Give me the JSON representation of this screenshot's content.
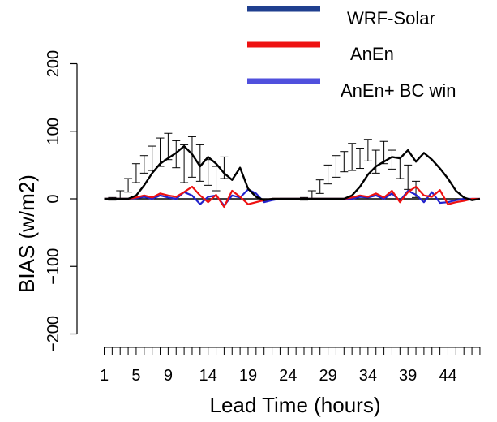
{
  "chart_data": {
    "type": "line",
    "title": "",
    "xlabel": "Lead Time (hours)",
    "ylabel": "BIAS (w/m2)",
    "xlim": [
      1,
      48
    ],
    "ylim": [
      -200,
      200
    ],
    "x_ticks": [
      1,
      5,
      9,
      14,
      19,
      24,
      29,
      34,
      39,
      44
    ],
    "x_tick_labels": [
      "1",
      "5",
      "9",
      "14",
      "19",
      "24",
      "29",
      "34",
      "39",
      "44"
    ],
    "y_ticks": [
      -200,
      -100,
      0,
      100,
      200
    ],
    "y_tick_labels": [
      "−200",
      "−100",
      "0",
      "100",
      "200"
    ],
    "grid": false,
    "legend_position": "top-right",
    "legend": [
      {
        "label": "WRF-Solar",
        "color": "#1f3f8f"
      },
      {
        "label": "AnEn",
        "color": "#ee1111"
      },
      {
        "label": "AnEn+ BC win",
        "color": "#5050dd"
      }
    ],
    "x": [
      1,
      2,
      3,
      4,
      5,
      6,
      7,
      8,
      9,
      10,
      11,
      12,
      13,
      14,
      15,
      16,
      17,
      18,
      19,
      20,
      21,
      22,
      23,
      24,
      25,
      26,
      27,
      28,
      29,
      30,
      31,
      32,
      33,
      34,
      35,
      36,
      37,
      38,
      39,
      40,
      41,
      42,
      43,
      44,
      45,
      46,
      47,
      48
    ],
    "error_bar_series": {
      "color": "#000000",
      "x": [
        2,
        3,
        4,
        5,
        6,
        7,
        8,
        9,
        10,
        11,
        12,
        13,
        14,
        15,
        16,
        26,
        27,
        28,
        29,
        30,
        31,
        32,
        33,
        34,
        35,
        36,
        37,
        38,
        39,
        40
      ],
      "mean": [
        0,
        5,
        20,
        38,
        52,
        60,
        68,
        78,
        66,
        48,
        62,
        52,
        38,
        28,
        46,
        0,
        5,
        18,
        36,
        48,
        55,
        62,
        60,
        72,
        55,
        68,
        58,
        45,
        30,
        12
      ],
      "upper": [
        2,
        12,
        30,
        52,
        64,
        78,
        90,
        97,
        86,
        80,
        92,
        80,
        58,
        48,
        62,
        2,
        12,
        28,
        50,
        64,
        70,
        82,
        75,
        88,
        72,
        85,
        72,
        62,
        50,
        26
      ],
      "lower": [
        -2,
        0,
        10,
        24,
        38,
        42,
        48,
        58,
        46,
        24,
        32,
        26,
        20,
        12,
        30,
        -2,
        0,
        8,
        22,
        32,
        40,
        42,
        45,
        56,
        38,
        52,
        44,
        30,
        14,
        2
      ]
    },
    "series": [
      {
        "name": "WRF-Solar",
        "color": "#000000",
        "values": [
          0,
          0,
          0,
          0,
          5,
          20,
          38,
          52,
          60,
          68,
          78,
          66,
          48,
          62,
          52,
          38,
          28,
          46,
          15,
          3,
          -2,
          0,
          0,
          0,
          0,
          0,
          0,
          0,
          0,
          0,
          0,
          5,
          18,
          36,
          48,
          55,
          62,
          60,
          72,
          55,
          68,
          58,
          45,
          30,
          12,
          2,
          -2,
          0
        ]
      },
      {
        "name": "AnEn",
        "color": "#ee1111",
        "values": [
          0,
          0,
          0,
          0,
          2,
          5,
          2,
          8,
          5,
          3,
          10,
          18,
          5,
          -5,
          6,
          -12,
          12,
          3,
          -8,
          -5,
          -2,
          0,
          0,
          0,
          0,
          0,
          0,
          0,
          0,
          0,
          0,
          2,
          5,
          3,
          8,
          2,
          12,
          -5,
          10,
          18,
          5,
          3,
          13,
          -8,
          -5,
          -3,
          0,
          0
        ]
      },
      {
        "name": "AnEn+ BC win",
        "color": "#2222cc",
        "values": [
          0,
          0,
          0,
          0,
          1,
          3,
          0,
          5,
          2,
          0,
          10,
          5,
          -8,
          3,
          5,
          -10,
          5,
          2,
          14,
          8,
          -5,
          -2,
          0,
          0,
          0,
          0,
          0,
          0,
          0,
          0,
          0,
          0,
          3,
          2,
          5,
          0,
          8,
          -3,
          12,
          6,
          -5,
          10,
          -6,
          -5,
          -2,
          0,
          0,
          0
        ]
      }
    ]
  }
}
